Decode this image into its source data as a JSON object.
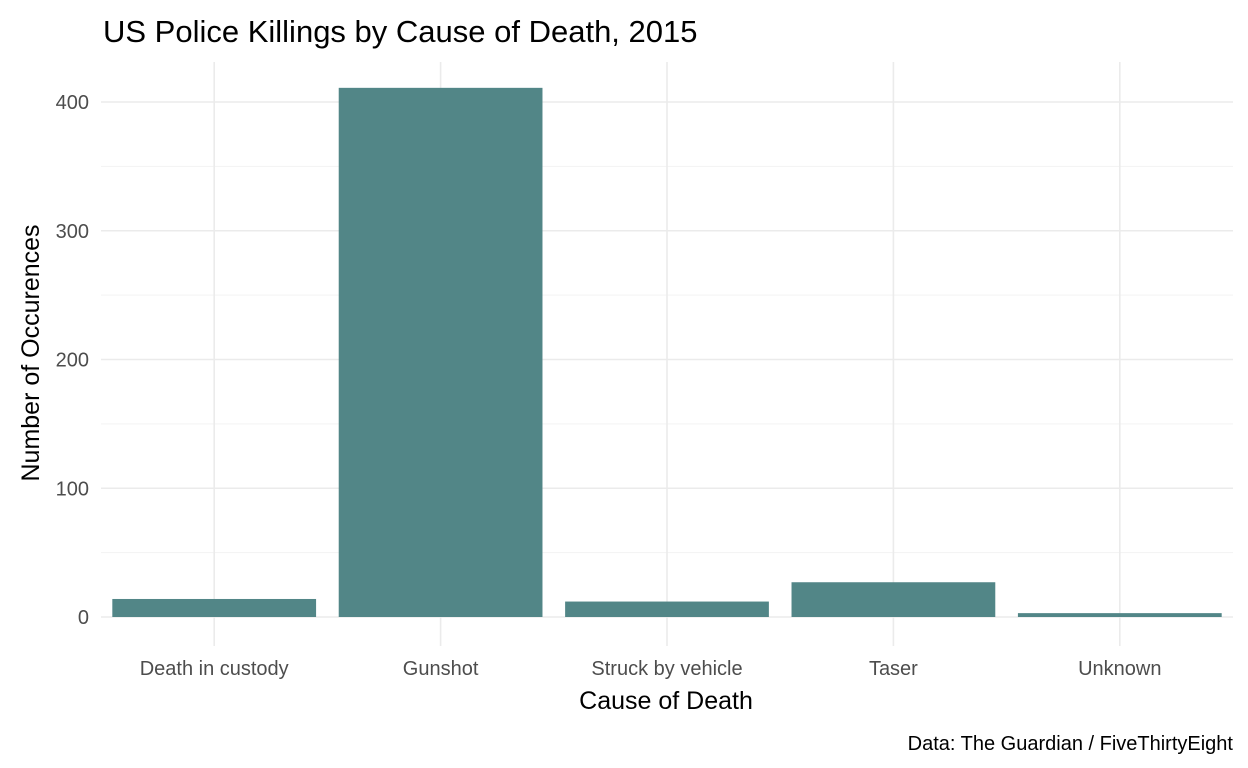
{
  "chart_data": {
    "type": "bar",
    "title": "US Police Killings by Cause of Death, 2015",
    "xlabel": "Cause of Death",
    "ylabel": "Number of Occurences",
    "caption": "Data: The Guardian / FiveThirtyEight",
    "categories": [
      "Death in custody",
      "Gunshot",
      "Struck by vehicle",
      "Taser",
      "Unknown"
    ],
    "values": [
      14,
      411,
      12,
      27,
      3
    ],
    "ylim": [
      0,
      427
    ],
    "yticks": [
      0,
      100,
      200,
      300,
      400
    ],
    "ytick_labels": [
      "0",
      "100",
      "200",
      "300",
      "400"
    ],
    "grid": true,
    "legend": "none",
    "bar_color": "#528687",
    "grid_color": "#ebebeb"
  }
}
